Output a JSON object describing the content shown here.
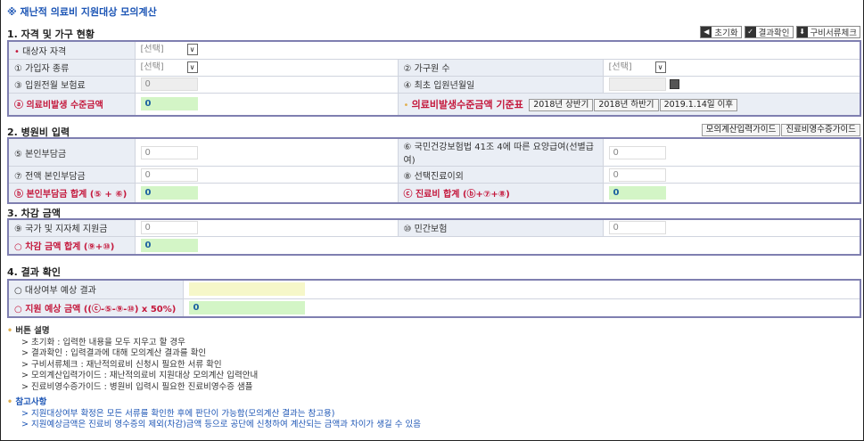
{
  "title": "※ 재난적 의료비 지원대상 모의계산",
  "toolbar": {
    "reset": "초기화",
    "confirm": "결과확인",
    "docs": "구비서류체크"
  },
  "s1": {
    "title": "1. 자격 및 가구 현황",
    "qual_label": "대상자 자격",
    "qual_value": "[선택]",
    "r1_label": "① 가입자 종류",
    "r1_value": "[선택]",
    "r2_label": "② 가구원 수",
    "r2_value": "[선택]",
    "r3_label": "③ 입원전월 보험료",
    "r3_value": "0",
    "r4_label": "④ 최초 입원년월일",
    "r4_value": "",
    "a_label": "ⓐ  의료비발생 수준금액",
    "a_value": "0",
    "std_label": "의료비발생수준금액 기준표",
    "std_buttons": [
      "2018년 상반기",
      "2018년 하반기",
      "2019.1.14일 이후"
    ]
  },
  "s2": {
    "title": "2. 병원비 입력",
    "guide1": "모의계산입력가이드",
    "guide2": "진료비영수증가이드",
    "r5_label": "⑤ 본인부담금",
    "r5_value": "0",
    "r6_label": "⑥ 국민건강보험법 41조 4에 따른 요양급여(선별급여)",
    "r6_value": "0",
    "r7_label": "⑦ 전액 본인부담금",
    "r7_value": "0",
    "r8_label": "⑧ 선택진료이외",
    "r8_value": "0",
    "b_label": "ⓑ 본인부담금 합계 (⑤ + ⑥)",
    "b_value": "0",
    "c_label": "ⓒ 진료비 합계 (ⓑ+⑦+⑧)",
    "c_value": "0"
  },
  "s3": {
    "title": "3. 차감 금액",
    "r9_label": "⑨ 국가 및 지자체 지원금",
    "r9_value": "0",
    "r10_label": "⑩ 민간보험",
    "r10_value": "0",
    "sum_label": "○ 차감 금액 합계 (⑨+⑩)",
    "sum_value": "0"
  },
  "s4": {
    "title": "4. 결과 확인",
    "res_label": "○ 대상여부 예상 결과",
    "res_value": "",
    "amt_label": "○ 지원 예상 금액 ((ⓒ-⑤-⑨-⑩) x 50%)",
    "amt_value": "0"
  },
  "notes": {
    "h1": "버튼 설명",
    "items1": [
      "> 초기화 : 입력한 내용을 모두 지우고 할 경우",
      "> 결과확인 : 입력결과에 대해 모의계산 결과를 확인",
      "> 구비서류체크 : 재난적의료비 신청시 필요한 서류 확인",
      "> 모의계산입력가이드 : 재난적의료비 지원대상 모의계산 입력안내",
      "> 진료비영수증가이드 : 병원비 입력시 필요한 진료비영수증 샘플"
    ],
    "h2": "참고사항",
    "items2": [
      "> 지원대상여부 확정은 모든 서류를 확인한 후에 판단이 가능함(모의계산 결과는 참고용)",
      "> 지원예상금액은 진료비 영수증의 제외(차감)금액 등으로 공단에 신청하여 계산되는 금액과 차이가 생길 수 있음"
    ]
  },
  "colors": {
    "accent": "#1c55b5",
    "red": "#c4183c",
    "border": "#7f7fb0",
    "green": "#d3f5c6",
    "label_bg": "#eaeef5"
  }
}
